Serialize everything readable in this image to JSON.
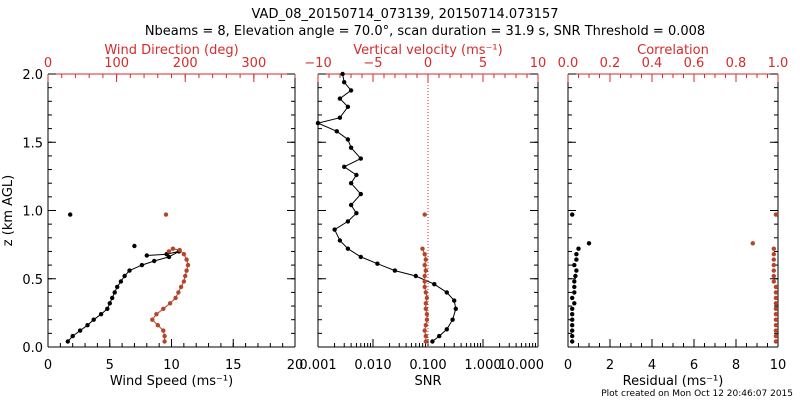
{
  "title_line1": "VAD_08_20150714_073139, 20150714.073157",
  "title_line2": "Nbeams = 8, Elevation angle = 70.0°, scan duration = 31.9 s, SNR Threshold = 0.008",
  "footer": "Plot created on Mon Oct 12 20:46:07 2015",
  "colors": {
    "black": "#000000",
    "red": "#d42b2b",
    "dots": "#b5452a"
  },
  "chart_data": [
    {
      "type": "line",
      "name": "wind-panel",
      "ylabel": "z (km AGL)",
      "ylim": [
        0,
        2
      ],
      "yticks": [
        "0.0",
        "0.5",
        "1.0",
        "1.5",
        "2.0"
      ],
      "bottom_axis": {
        "label": "Wind Speed (ms⁻¹)",
        "range": [
          0,
          20
        ],
        "ticks": [
          "0",
          "5",
          "10",
          "15",
          "20"
        ]
      },
      "top_axis": {
        "label": "Wind Direction (deg)",
        "range": [
          0,
          360
        ],
        "ticks": [
          "0",
          "100",
          "200",
          "300"
        ]
      },
      "series": [
        {
          "name": "Wind Speed",
          "color": "#000000",
          "axis": "bottom",
          "connected": [
            [
              1.6,
              0.04
            ],
            [
              2.0,
              0.08
            ],
            [
              2.6,
              0.12
            ],
            [
              3.2,
              0.16
            ],
            [
              3.7,
              0.2
            ],
            [
              4.3,
              0.24
            ],
            [
              4.8,
              0.28
            ],
            [
              5.0,
              0.32
            ],
            [
              5.2,
              0.36
            ],
            [
              5.4,
              0.4
            ],
            [
              5.6,
              0.44
            ],
            [
              5.9,
              0.48
            ],
            [
              6.2,
              0.52
            ],
            [
              6.6,
              0.56
            ],
            [
              7.6,
              0.6
            ],
            [
              8.6,
              0.63
            ],
            [
              9.8,
              0.66
            ],
            [
              10.6,
              0.7
            ],
            [
              9.6,
              0.68
            ],
            [
              8.0,
              0.67
            ]
          ],
          "isolated": [
            [
              1.8,
              0.97
            ],
            [
              7.0,
              0.74
            ]
          ]
        },
        {
          "name": "Wind Direction",
          "color": "#b5452a",
          "axis": "top",
          "connected": [
            [
              170,
              0.04
            ],
            [
              170,
              0.08
            ],
            [
              168,
              0.12
            ],
            [
              160,
              0.16
            ],
            [
              152,
              0.2
            ],
            [
              158,
              0.24
            ],
            [
              168,
              0.28
            ],
            [
              178,
              0.32
            ],
            [
              186,
              0.36
            ],
            [
              190,
              0.4
            ],
            [
              194,
              0.44
            ],
            [
              198,
              0.48
            ],
            [
              200,
              0.52
            ],
            [
              202,
              0.56
            ],
            [
              204,
              0.6
            ],
            [
              202,
              0.64
            ],
            [
              198,
              0.68
            ],
            [
              192,
              0.71
            ],
            [
              182,
              0.72
            ],
            [
              176,
              0.7
            ]
          ],
          "isolated": [
            [
              172,
              0.97
            ]
          ]
        }
      ]
    },
    {
      "type": "line",
      "name": "snr-panel",
      "ylim": [
        0,
        2
      ],
      "bottom_axis": {
        "label": "SNR",
        "scale": "log",
        "range": [
          0.001,
          10
        ],
        "ticks": [
          "0.001",
          "0.010",
          "0.100",
          "1.000",
          "10.000"
        ]
      },
      "top_axis": {
        "label": "Vertical velocity (ms⁻¹)",
        "range": [
          -10,
          10
        ],
        "ticks": [
          "−10",
          "−5",
          "0",
          "5",
          "10"
        ]
      },
      "series": [
        {
          "name": "SNR",
          "color": "#000000",
          "axis": "bottom",
          "connected": [
            [
              0.12,
              0.04
            ],
            [
              0.16,
              0.08
            ],
            [
              0.22,
              0.13
            ],
            [
              0.28,
              0.2
            ],
            [
              0.32,
              0.28
            ],
            [
              0.3,
              0.34
            ],
            [
              0.22,
              0.4
            ],
            [
              0.13,
              0.46
            ],
            [
              0.06,
              0.52
            ],
            [
              0.025,
              0.56
            ],
            [
              0.012,
              0.61
            ],
            [
              0.006,
              0.66
            ],
            [
              0.0035,
              0.72
            ],
            [
              0.0025,
              0.78
            ],
            [
              0.002,
              0.86
            ],
            [
              0.0035,
              0.92
            ],
            [
              0.005,
              0.98
            ],
            [
              0.004,
              1.04
            ],
            [
              0.006,
              1.12
            ],
            [
              0.004,
              1.2
            ],
            [
              0.005,
              1.26
            ],
            [
              0.003,
              1.32
            ],
            [
              0.006,
              1.38
            ],
            [
              0.004,
              1.46
            ],
            [
              0.0035,
              1.52
            ],
            [
              0.0022,
              1.58
            ],
            [
              0.001,
              1.64
            ],
            [
              0.0025,
              1.68
            ],
            [
              0.0035,
              1.76
            ],
            [
              0.0025,
              1.82
            ],
            [
              0.004,
              1.88
            ],
            [
              0.003,
              1.94
            ],
            [
              0.0028,
              2.0
            ]
          ]
        },
        {
          "name": "Vertical velocity",
          "color": "#b5452a",
          "axis": "top",
          "reference_line": 0,
          "connected": [
            [
              -0.2,
              0.04
            ],
            [
              -0.2,
              0.08
            ],
            [
              -0.3,
              0.12
            ],
            [
              -0.2,
              0.16
            ],
            [
              -0.1,
              0.2
            ],
            [
              -0.1,
              0.24
            ],
            [
              -0.2,
              0.28
            ],
            [
              -0.2,
              0.32
            ],
            [
              -0.1,
              0.36
            ],
            [
              -0.2,
              0.4
            ],
            [
              -0.3,
              0.44
            ],
            [
              -0.3,
              0.48
            ],
            [
              -0.3,
              0.52
            ],
            [
              -0.2,
              0.56
            ],
            [
              -0.3,
              0.6
            ],
            [
              -0.2,
              0.64
            ],
            [
              -0.3,
              0.68
            ],
            [
              -0.5,
              0.72
            ]
          ],
          "isolated": [
            [
              -0.3,
              0.97
            ]
          ]
        }
      ]
    },
    {
      "type": "scatter",
      "name": "residual-panel",
      "ylim": [
        0,
        2
      ],
      "bottom_axis": {
        "label": "Residual (ms⁻¹)",
        "range": [
          0,
          10
        ],
        "ticks": [
          "0",
          "2",
          "4",
          "6",
          "8",
          "10"
        ]
      },
      "top_axis": {
        "label": "Correlation",
        "range": [
          0,
          1
        ],
        "ticks": [
          "0.0",
          "0.2",
          "0.4",
          "0.6",
          "0.8",
          "1.0"
        ]
      },
      "series": [
        {
          "name": "Residual",
          "color": "#000000",
          "axis": "bottom",
          "points": [
            [
              0.2,
              0.04
            ],
            [
              0.2,
              0.08
            ],
            [
              0.2,
              0.12
            ],
            [
              0.2,
              0.16
            ],
            [
              0.2,
              0.2
            ],
            [
              0.2,
              0.24
            ],
            [
              0.2,
              0.28
            ],
            [
              0.3,
              0.32
            ],
            [
              0.2,
              0.36
            ],
            [
              0.3,
              0.4
            ],
            [
              0.3,
              0.44
            ],
            [
              0.3,
              0.48
            ],
            [
              0.35,
              0.52
            ],
            [
              0.4,
              0.56
            ],
            [
              0.3,
              0.6
            ],
            [
              0.4,
              0.64
            ],
            [
              0.4,
              0.68
            ],
            [
              0.5,
              0.72
            ],
            [
              1.0,
              0.76
            ],
            [
              0.2,
              0.97
            ]
          ]
        },
        {
          "name": "Correlation",
          "color": "#b5452a",
          "axis": "top",
          "points": [
            [
              0.99,
              0.04
            ],
            [
              0.99,
              0.08
            ],
            [
              0.99,
              0.12
            ],
            [
              0.99,
              0.16
            ],
            [
              0.99,
              0.2
            ],
            [
              0.99,
              0.24
            ],
            [
              0.99,
              0.28
            ],
            [
              0.99,
              0.32
            ],
            [
              0.99,
              0.36
            ],
            [
              0.99,
              0.4
            ],
            [
              0.99,
              0.44
            ],
            [
              0.98,
              0.48
            ],
            [
              0.98,
              0.52
            ],
            [
              0.98,
              0.56
            ],
            [
              0.98,
              0.6
            ],
            [
              0.98,
              0.64
            ],
            [
              0.98,
              0.68
            ],
            [
              0.98,
              0.72
            ],
            [
              0.88,
              0.76
            ],
            [
              0.99,
              0.97
            ]
          ]
        }
      ]
    }
  ]
}
